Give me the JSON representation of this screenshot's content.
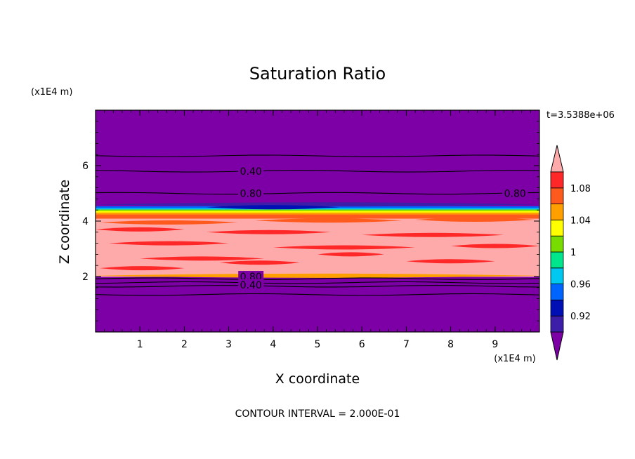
{
  "chart_data": {
    "type": "heatmap",
    "title": "Saturation Ratio",
    "xlabel": "X coordinate",
    "ylabel": "Z coordinate",
    "x_unit": "(x1E4 m)",
    "y_unit": "(x1E4 m)",
    "time_label": "t=3.5388e+06",
    "footer": "CONTOUR INTERVAL = 2.000E-01",
    "xlim": [
      0,
      10
    ],
    "ylim": [
      0,
      8
    ],
    "x_ticks": [
      "1",
      "2",
      "3",
      "4",
      "5",
      "6",
      "7",
      "8",
      "9"
    ],
    "y_ticks": [
      "2",
      "4",
      "6"
    ],
    "colorbar": {
      "levels": [
        0.9,
        0.92,
        0.94,
        0.96,
        0.98,
        1.0,
        1.02,
        1.04,
        1.06,
        1.08,
        1.1
      ],
      "labels": [
        "0.92",
        "0.96",
        "1",
        "1.04",
        "1.08"
      ],
      "colors": [
        "#7d00a6",
        "#3c1ea8",
        "#0010b4",
        "#0064ff",
        "#00c8f0",
        "#00e68c",
        "#78dc00",
        "#ffff00",
        "#ffa000",
        "#ff5a1e",
        "#ff2828",
        "#ffaaaa"
      ]
    },
    "bands": [
      {
        "z0": 0.0,
        "z1": 2.0,
        "color": "#7d00a6"
      },
      {
        "z0": 2.0,
        "z1": 4.1,
        "color": "#ffaaaa"
      },
      {
        "z0": 4.1,
        "z1": 4.25,
        "color": "#ff5a1e"
      },
      {
        "z0": 4.25,
        "z1": 4.32,
        "color": "#ffa000"
      },
      {
        "z0": 4.32,
        "z1": 4.38,
        "color": "#ffff00"
      },
      {
        "z0": 4.38,
        "z1": 4.43,
        "color": "#78dc00"
      },
      {
        "z0": 4.43,
        "z1": 4.48,
        "color": "#00c8f0"
      },
      {
        "z0": 4.48,
        "z1": 4.55,
        "color": "#0064ff"
      },
      {
        "z0": 4.55,
        "z1": 8.0,
        "color": "#7d00a6"
      }
    ],
    "streaks": [
      {
        "x0": 0.1,
        "x1": 3.2,
        "z": 3.95,
        "color": "#ff5a1e"
      },
      {
        "x0": 3.6,
        "x1": 6.9,
        "z": 4.02,
        "color": "#ff5a1e"
      },
      {
        "x0": 7.2,
        "x1": 9.9,
        "z": 4.05,
        "color": "#ff5a1e"
      },
      {
        "x0": 0.0,
        "x1": 2.0,
        "z": 3.7,
        "color": "#ff2828"
      },
      {
        "x0": 2.5,
        "x1": 5.3,
        "z": 3.6,
        "color": "#ff2828"
      },
      {
        "x0": 6.0,
        "x1": 9.2,
        "z": 3.5,
        "color": "#ff2828"
      },
      {
        "x0": 0.3,
        "x1": 3.0,
        "z": 3.2,
        "color": "#ff2828"
      },
      {
        "x0": 4.0,
        "x1": 7.2,
        "z": 3.05,
        "color": "#ff2828"
      },
      {
        "x0": 8.0,
        "x1": 10.0,
        "z": 3.1,
        "color": "#ff2828"
      },
      {
        "x0": 1.0,
        "x1": 3.8,
        "z": 2.65,
        "color": "#ff2828"
      },
      {
        "x0": 5.0,
        "x1": 6.5,
        "z": 2.8,
        "color": "#ff2828"
      },
      {
        "x0": 7.0,
        "x1": 9.0,
        "z": 2.55,
        "color": "#ff2828"
      },
      {
        "x0": 0.1,
        "x1": 2.0,
        "z": 2.3,
        "color": "#ff2828"
      },
      {
        "x0": 2.8,
        "x1": 4.6,
        "z": 2.5,
        "color": "#ff2828"
      },
      {
        "x0": 0.0,
        "x1": 10.0,
        "z": 2.03,
        "color": "#ffa000"
      },
      {
        "x0": 0.0,
        "x1": 10.0,
        "z": 4.6,
        "color": "#3c1ea8"
      },
      {
        "x0": 2.5,
        "x1": 5.5,
        "z": 4.5,
        "color": "#0010b4"
      }
    ],
    "contours": [
      {
        "z": 1.35,
        "label": ""
      },
      {
        "z": 1.65,
        "label": ""
      },
      {
        "z": 1.78,
        "label": "0.40"
      },
      {
        "z": 1.92,
        "label": "0.80"
      },
      {
        "z": 5.0,
        "label": "0.80"
      },
      {
        "z": 5.8,
        "label": "0.40"
      },
      {
        "z": 6.35,
        "label": ""
      }
    ],
    "contour_labels": [
      {
        "text": "0.40",
        "x": 3.5,
        "z": 5.8
      },
      {
        "text": "0.80",
        "x": 3.5,
        "z": 5.0
      },
      {
        "text": "0.80",
        "x": 9.45,
        "z": 5.0
      },
      {
        "text": "0.80",
        "x": 3.5,
        "z": 2.0
      },
      {
        "text": "0.40",
        "x": 3.5,
        "z": 1.7
      }
    ]
  }
}
